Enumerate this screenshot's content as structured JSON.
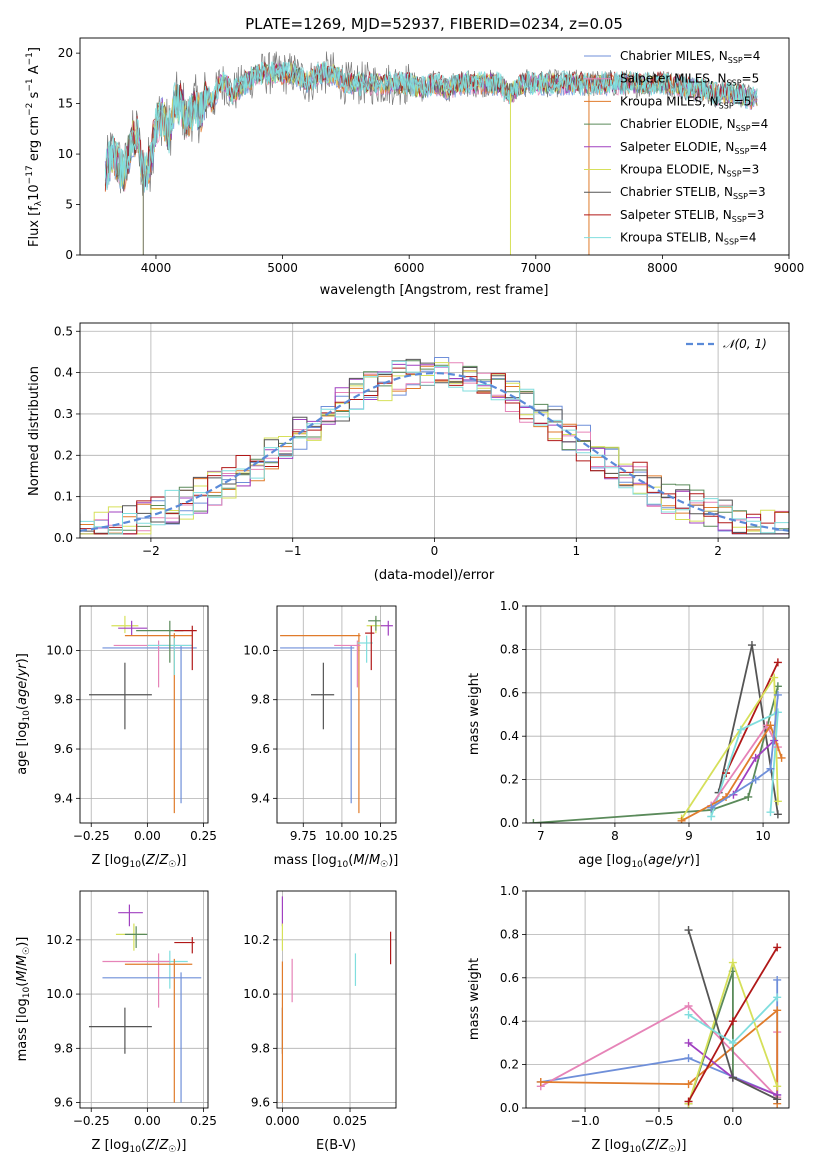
{
  "colors": {
    "chabrier_miles": "#6f8fd9",
    "salpeter_miles": "#e684b8",
    "kroupa_miles": "#e07b2b",
    "chabrier_elodie": "#5a8a5a",
    "salpeter_elodie": "#a040c0",
    "kroupa_elodie": "#d6e05a",
    "chabrier_stelib": "#555555",
    "salpeter_stelib": "#b01818",
    "kroupa_stelib": "#80dede",
    "gauss": "#5a8ad8",
    "grid": "#b0b0b0",
    "spectrum_gray": "#7a7a7a"
  },
  "chart_data": [
    {
      "type": "line",
      "title": "PLATE=1269, MJD=52937, FIBERID=0234, z=0.05",
      "xlabel": "wavelength [Angstrom, rest frame]",
      "ylabel": "Flux [f_λ10^-17 erg cm^-2 s^-1 A^-1]",
      "xlim": [
        3400,
        9000
      ],
      "ylim": [
        0,
        21.5
      ],
      "xticks": [
        4000,
        5000,
        6000,
        7000,
        8000,
        9000
      ],
      "yticks": [
        0,
        5,
        10,
        15,
        20
      ],
      "grid": false,
      "legend_position": "top-right",
      "series": [
        {
          "name": "Chabrier MILES, N_SSP=4",
          "color_key": "chabrier_miles"
        },
        {
          "name": "Salpeter MILES, N_SSP=5",
          "color_key": "salpeter_miles"
        },
        {
          "name": "Kroupa MILES, N_SSP=5",
          "color_key": "kroupa_miles"
        },
        {
          "name": "Chabrier ELODIE, N_SSP=4",
          "color_key": "chabrier_elodie"
        },
        {
          "name": "Salpeter ELODIE, N_SSP=4",
          "color_key": "salpeter_elodie"
        },
        {
          "name": "Kroupa ELODIE, N_SSP=3",
          "color_key": "kroupa_elodie"
        },
        {
          "name": "Chabrier STELIB, N_SSP=3",
          "color_key": "chabrier_stelib"
        },
        {
          "name": "Salpeter STELIB, N_SSP=3",
          "color_key": "salpeter_stelib"
        },
        {
          "name": "Kroupa STELIB, N_SSP=4",
          "color_key": "kroupa_stelib"
        }
      ],
      "legend_labels": [
        {
          "pre": "Chabrier MILES, N",
          "sub": "SSP",
          "post": "=4"
        },
        {
          "pre": "Salpeter MILES, N",
          "sub": "SSP",
          "post": "=5"
        },
        {
          "pre": "Kroupa MILES, N",
          "sub": "SSP",
          "post": "=5"
        },
        {
          "pre": "Chabrier ELODIE, N",
          "sub": "SSP",
          "post": "=4"
        },
        {
          "pre": "Salpeter ELODIE, N",
          "sub": "SSP",
          "post": "=4"
        },
        {
          "pre": "Kroupa ELODIE, N",
          "sub": "SSP",
          "post": "=3"
        },
        {
          "pre": "Chabrier STELIB, N",
          "sub": "SSP",
          "post": "=3"
        },
        {
          "pre": "Salpeter STELIB, N",
          "sub": "SSP",
          "post": "=3"
        },
        {
          "pre": "Kroupa STELIB, N",
          "sub": "SSP",
          "post": "=4"
        }
      ],
      "envelope": {
        "x": [
          3600,
          3650,
          3700,
          3750,
          3800,
          3850,
          3900,
          3950,
          4000,
          4050,
          4100,
          4150,
          4200,
          4250,
          4300,
          4350,
          4400,
          4450,
          4500,
          4550,
          4600,
          4700,
          4800,
          4900,
          5000,
          5100,
          5200,
          5300,
          5400,
          5500,
          5600,
          5700,
          5800,
          5900,
          6000,
          6100,
          6200,
          6300,
          6400,
          6500,
          6600,
          6700,
          6800,
          6900,
          7000,
          7100,
          7200,
          7300,
          7400,
          7500,
          7600,
          7700,
          7800,
          7900,
          8000,
          8100,
          8200,
          8300,
          8400,
          8500,
          8600,
          8700,
          8750
        ],
        "y": [
          8,
          10,
          9,
          8,
          11,
          12,
          8,
          9,
          13,
          14,
          12,
          15,
          15,
          13,
          15,
          14,
          16,
          15,
          17,
          17,
          16,
          17,
          18,
          18,
          18,
          18,
          17,
          18,
          18,
          17,
          17,
          17,
          17,
          17,
          17,
          16.5,
          17,
          16.5,
          17,
          17,
          17,
          17,
          16,
          17,
          17,
          17,
          17,
          17,
          17,
          17,
          17,
          17,
          17,
          17,
          17,
          17,
          16.5,
          16.5,
          16,
          16,
          16,
          15.5,
          15.5
        ]
      },
      "dips": [
        {
          "x": 3900,
          "y": 0,
          "color_key": "kroupa_elodie"
        },
        {
          "x": 3900,
          "y": 0,
          "color_key": "spectrum_gray"
        },
        {
          "x": 6800,
          "y": 0,
          "color_key": "kroupa_elodie"
        },
        {
          "x": 7420,
          "y": 0,
          "color_key": "kroupa_miles"
        }
      ]
    },
    {
      "type": "histogram",
      "xlabel": "(data-model)/error",
      "ylabel": "Normed distribution",
      "xlim": [
        -2.5,
        2.5
      ],
      "ylim": [
        0,
        0.52
      ],
      "xticks": [
        -2,
        -1,
        0,
        1,
        2
      ],
      "yticks": [
        0.0,
        0.1,
        0.2,
        0.3,
        0.4,
        0.5
      ],
      "grid": true,
      "legend_position": "top-right",
      "gauss_label": "N(0, 1)",
      "gauss_label_math": "𝒩(0, 1)",
      "bin_width": 0.1
    },
    {
      "type": "scatter",
      "xlabel": "Z [log10(Z/Z☉)]",
      "ylabel": "age [log10(age/yr)]",
      "xlim": [
        -0.3,
        0.27
      ],
      "ylim": [
        9.3,
        10.18
      ],
      "xticks": [
        -0.25,
        0.0,
        0.25
      ],
      "yticks": [
        9.4,
        9.6,
        9.8,
        10.0
      ],
      "grid": true,
      "points": [
        {
          "c": "chabrier_stelib",
          "x": -0.1,
          "xe": [
            -0.26,
            0.02
          ],
          "y": 9.82,
          "ye": [
            9.68,
            9.95
          ]
        },
        {
          "c": "kroupa_elodie",
          "x": -0.1,
          "xe": [
            -0.16,
            -0.04
          ],
          "y": 10.1,
          "ye": [
            10.07,
            10.14
          ]
        },
        {
          "c": "salpeter_elodie",
          "x": -0.07,
          "xe": [
            -0.13,
            0.0
          ],
          "y": 10.09,
          "ye": [
            10.06,
            10.12
          ]
        },
        {
          "c": "kroupa_miles",
          "x": 0.12,
          "xe": [
            -0.1,
            0.2
          ],
          "y": 10.06,
          "ye": [
            9.34,
            10.07
          ]
        },
        {
          "c": "chabrier_miles",
          "x": 0.15,
          "xe": [
            -0.2,
            0.22
          ],
          "y": 10.01,
          "ye": [
            9.38,
            10.02
          ]
        },
        {
          "c": "salpeter_miles",
          "x": 0.05,
          "xe": [
            -0.15,
            0.2
          ],
          "y": 10.02,
          "ye": [
            9.85,
            10.04
          ]
        },
        {
          "c": "kroupa_stelib",
          "x": 0.12,
          "xe": [
            0.0,
            0.2
          ],
          "y": 10.02,
          "ye": [
            9.9,
            10.05
          ]
        },
        {
          "c": "chabrier_elodie",
          "x": 0.1,
          "xe": [
            -0.05,
            0.16
          ],
          "y": 10.08,
          "ye": [
            9.95,
            10.12
          ]
        },
        {
          "c": "salpeter_stelib",
          "x": 0.2,
          "xe": [
            0.12,
            0.22
          ],
          "y": 10.08,
          "ye": [
            9.92,
            10.1
          ]
        }
      ]
    },
    {
      "type": "scatter",
      "xlabel": "mass [log10(M/M☉)]",
      "xlim": [
        9.58,
        10.35
      ],
      "ylim": [
        9.3,
        10.18
      ],
      "xticks": [
        9.75,
        10.0,
        10.25
      ],
      "yticks": [
        9.4,
        9.6,
        9.8,
        10.0
      ],
      "grid": true,
      "points": [
        {
          "c": "chabrier_stelib",
          "x": 9.88,
          "xe": [
            9.8,
            9.95
          ],
          "y": 9.82,
          "ye": [
            9.68,
            9.95
          ]
        },
        {
          "c": "kroupa_miles",
          "x": 10.11,
          "xe": [
            9.6,
            10.12
          ],
          "y": 10.06,
          "ye": [
            9.34,
            10.07
          ]
        },
        {
          "c": "chabrier_miles",
          "x": 10.06,
          "xe": [
            9.6,
            10.08
          ],
          "y": 10.01,
          "ye": [
            9.38,
            10.02
          ]
        },
        {
          "c": "salpeter_miles",
          "x": 10.1,
          "xe": [
            9.95,
            10.12
          ],
          "y": 10.02,
          "ye": [
            9.85,
            10.04
          ]
        },
        {
          "c": "kroupa_stelib",
          "x": 10.16,
          "xe": [
            10.1,
            10.2
          ],
          "y": 10.03,
          "ye": [
            9.95,
            10.06
          ]
        },
        {
          "c": "kroupa_elodie",
          "x": 10.22,
          "xe": [
            10.16,
            10.26
          ],
          "y": 10.1,
          "ye": [
            10.07,
            10.13
          ]
        },
        {
          "c": "chabrier_elodie",
          "x": 10.22,
          "xe": [
            10.17,
            10.25
          ],
          "y": 10.12,
          "ye": [
            10.08,
            10.14
          ]
        },
        {
          "c": "salpeter_stelib",
          "x": 10.19,
          "xe": [
            10.15,
            10.21
          ],
          "y": 10.07,
          "ye": [
            9.92,
            10.1
          ]
        },
        {
          "c": "salpeter_elodie",
          "x": 10.3,
          "xe": [
            10.25,
            10.33
          ],
          "y": 10.1,
          "ye": [
            10.06,
            10.12
          ]
        }
      ]
    },
    {
      "type": "line",
      "xlabel": "age [log10(age/yr)]",
      "ylabel": "mass weight",
      "xlim": [
        6.8,
        10.35
      ],
      "ylim": [
        0,
        1.0
      ],
      "xticks": [
        7,
        8,
        9,
        10
      ],
      "yticks": [
        0.0,
        0.2,
        0.4,
        0.6,
        0.8,
        1.0
      ],
      "grid": true,
      "series": [
        {
          "c": "chabrier_elodie",
          "x": [
            6.9,
            9.3,
            9.8,
            10.2
          ],
          "y": [
            0.0,
            0.06,
            0.12,
            0.63
          ]
        },
        {
          "c": "chabrier_stelib",
          "x": [
            9.4,
            9.85,
            10.2
          ],
          "y": [
            0.14,
            0.82,
            0.04
          ]
        },
        {
          "c": "salpeter_stelib",
          "x": [
            9.5,
            10.2,
            9.5
          ],
          "y": [
            0.23,
            0.74,
            0.23
          ]
        },
        {
          "c": "kroupa_elodie",
          "x": [
            8.9,
            10.15,
            10.2
          ],
          "y": [
            0.02,
            0.67,
            0.1
          ]
        },
        {
          "c": "kroupa_stelib",
          "x": [
            9.3,
            9.7,
            10.2,
            10.1
          ],
          "y": [
            0.03,
            0.43,
            0.51,
            0.05
          ]
        },
        {
          "c": "salpeter_miles",
          "x": [
            9.3,
            10.05,
            10.2
          ],
          "y": [
            0.08,
            0.45,
            0.35
          ]
        },
        {
          "c": "kroupa_miles",
          "x": [
            8.9,
            9.5,
            10.1,
            10.25
          ],
          "y": [
            0.01,
            0.12,
            0.45,
            0.3
          ]
        },
        {
          "c": "salpeter_elodie",
          "x": [
            9.6,
            9.9,
            10.15
          ],
          "y": [
            0.13,
            0.3,
            0.38
          ]
        },
        {
          "c": "chabrier_miles",
          "x": [
            9.3,
            9.9,
            10.1,
            10.2
          ],
          "y": [
            0.07,
            0.2,
            0.25,
            0.59
          ]
        }
      ]
    },
    {
      "type": "scatter",
      "xlabel": "Z [log10(Z/Z☉)]",
      "ylabel": "mass [log10(M/M☉)]",
      "xlim": [
        -0.3,
        0.27
      ],
      "ylim": [
        9.58,
        10.38
      ],
      "xticks": [
        -0.25,
        0.0,
        0.25
      ],
      "yticks": [
        9.6,
        9.8,
        10.0,
        10.2
      ],
      "grid": true,
      "points": [
        {
          "c": "chabrier_stelib",
          "x": -0.1,
          "xe": [
            -0.26,
            0.02
          ],
          "y": 9.88,
          "ye": [
            9.78,
            9.95
          ]
        },
        {
          "c": "salpeter_elodie",
          "x": -0.08,
          "xe": [
            -0.13,
            -0.02
          ],
          "y": 10.3,
          "ye": [
            10.25,
            10.33
          ]
        },
        {
          "c": "kroupa_elodie",
          "x": -0.06,
          "xe": [
            -0.14,
            -0.01
          ],
          "y": 10.22,
          "ye": [
            10.16,
            10.26
          ]
        },
        {
          "c": "chabrier_elodie",
          "x": -0.05,
          "xe": [
            -0.1,
            0.0
          ],
          "y": 10.22,
          "ye": [
            10.17,
            10.25
          ]
        },
        {
          "c": "salpeter_stelib",
          "x": 0.2,
          "xe": [
            0.12,
            0.21
          ],
          "y": 10.19,
          "ye": [
            10.15,
            10.21
          ]
        },
        {
          "c": "kroupa_stelib",
          "x": 0.1,
          "xe": [
            0.0,
            0.18
          ],
          "y": 10.12,
          "ye": [
            10.02,
            10.16
          ]
        },
        {
          "c": "salpeter_miles",
          "x": 0.05,
          "xe": [
            -0.2,
            0.1
          ],
          "y": 10.12,
          "ye": [
            9.95,
            10.15
          ]
        },
        {
          "c": "kroupa_miles",
          "x": 0.12,
          "xe": [
            -0.1,
            0.2
          ],
          "y": 10.11,
          "ye": [
            9.6,
            10.13
          ]
        },
        {
          "c": "chabrier_miles",
          "x": 0.15,
          "xe": [
            -0.2,
            0.24
          ],
          "y": 10.06,
          "ye": [
            9.6,
            10.08
          ]
        }
      ]
    },
    {
      "type": "scatter",
      "xlabel": "E(B-V)",
      "xlim": [
        -0.002,
        0.042
      ],
      "ylim": [
        9.58,
        10.38
      ],
      "xticks": [
        0.0,
        0.025
      ],
      "xtick_labels": [
        "0.000",
        "0.025"
      ],
      "yticks": [
        9.6,
        9.8,
        10.0,
        10.2
      ],
      "grid": true,
      "points": [
        {
          "c": "salpeter_elodie",
          "x": 0.0,
          "y": 10.3,
          "ye": [
            10.25,
            10.36
          ]
        },
        {
          "c": "kroupa_elodie",
          "x": 0.0,
          "y": 10.22,
          "ye": [
            10.16,
            10.26
          ]
        },
        {
          "c": "chabrier_stelib",
          "x": 0.0,
          "y": 9.88,
          "ye": [
            9.78,
            9.95
          ]
        },
        {
          "c": "kroupa_miles",
          "x": 0.0,
          "y": 10.1,
          "ye": [
            9.6,
            10.12
          ]
        },
        {
          "c": "salpeter_miles",
          "x": 0.0036,
          "y": 10.1,
          "ye": [
            9.97,
            10.13
          ]
        },
        {
          "c": "kroupa_stelib",
          "x": 0.027,
          "y": 10.1,
          "ye": [
            10.03,
            10.15
          ]
        },
        {
          "c": "salpeter_stelib",
          "x": 0.04,
          "y": 10.18,
          "ye": [
            10.11,
            10.23
          ]
        }
      ]
    },
    {
      "type": "line",
      "xlabel": "Z [log10(Z/Z☉)]",
      "ylabel": "mass weight",
      "xlim": [
        -1.4,
        0.38
      ],
      "ylim": [
        0,
        1.0
      ],
      "xticks": [
        -1.0,
        -0.5,
        0.0
      ],
      "yticks": [
        0.0,
        0.2,
        0.4,
        0.6,
        0.8,
        1.0
      ],
      "grid": true,
      "series": [
        {
          "c": "chabrier_miles",
          "x": [
            -1.3,
            -0.3,
            0.3,
            0.3
          ],
          "y": [
            0.12,
            0.23,
            0.06,
            0.59
          ]
        },
        {
          "c": "salpeter_miles",
          "x": [
            -1.3,
            -0.3,
            0.3,
            0.3
          ],
          "y": [
            0.1,
            0.47,
            0.05,
            0.35
          ]
        },
        {
          "c": "kroupa_miles",
          "x": [
            -1.3,
            -0.3,
            0.3,
            0.3
          ],
          "y": [
            0.12,
            0.11,
            0.45,
            0.02
          ]
        },
        {
          "c": "chabrier_elodie",
          "x": [
            -0.3,
            0.0,
            0.0
          ],
          "y": [
            0.02,
            0.63,
            0.14
          ]
        },
        {
          "c": "salpeter_elodie",
          "x": [
            -0.3,
            0.0,
            0.3
          ],
          "y": [
            0.3,
            0.14,
            0.06
          ]
        },
        {
          "c": "kroupa_elodie",
          "x": [
            -0.3,
            0.0,
            0.3
          ],
          "y": [
            0.02,
            0.67,
            0.1
          ]
        },
        {
          "c": "chabrier_stelib",
          "x": [
            -0.3,
            0.0,
            0.3
          ],
          "y": [
            0.82,
            0.14,
            0.04
          ]
        },
        {
          "c": "salpeter_stelib",
          "x": [
            -0.3,
            0.0,
            0.3
          ],
          "y": [
            0.03,
            0.4,
            0.74
          ]
        },
        {
          "c": "kroupa_stelib",
          "x": [
            -0.3,
            0.0,
            0.3
          ],
          "y": [
            0.43,
            0.3,
            0.51
          ]
        }
      ]
    }
  ]
}
